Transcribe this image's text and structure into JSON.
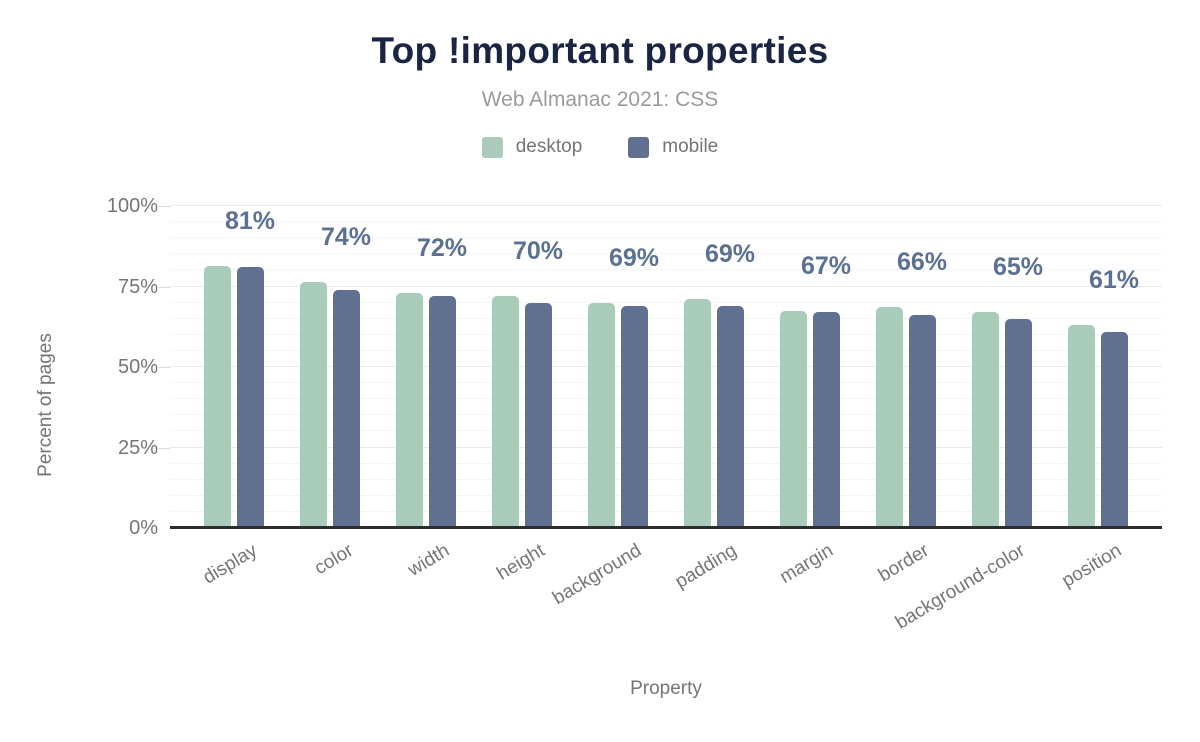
{
  "chart_data": {
    "type": "bar",
    "title": "Top !important properties",
    "subtitle": "Web Almanac 2021: CSS",
    "xlabel": "Property",
    "ylabel": "Percent of pages",
    "ylim": [
      0,
      100
    ],
    "ytick_values": [
      0,
      25,
      50,
      75,
      100
    ],
    "ytick_labels": [
      "0%",
      "25%",
      "50%",
      "75%",
      "100%"
    ],
    "categories": [
      "display",
      "color",
      "width",
      "height",
      "background",
      "padding",
      "margin",
      "border",
      "background-color",
      "position"
    ],
    "series": [
      {
        "name": "desktop",
        "color": "#a9cbb9",
        "values": [
          81.5,
          76.5,
          73,
          72,
          70,
          71,
          67.5,
          68.5,
          67,
          63
        ]
      },
      {
        "name": "mobile",
        "color": "#5f7090",
        "values": [
          81,
          74,
          72,
          70,
          69,
          69,
          67,
          66,
          65,
          61
        ]
      }
    ],
    "bar_labels": [
      "81%",
      "74%",
      "72%",
      "70%",
      "69%",
      "69%",
      "67%",
      "66%",
      "65%",
      "61%"
    ],
    "legend_position": "top",
    "grid": {
      "minor_step": 5,
      "major_step": 25,
      "orientation": "horizontal"
    }
  },
  "colors": {
    "title": "#1a2544",
    "subtitle": "#9a9a9a",
    "axis_text": "#757575",
    "bar_label": "#5b7193",
    "axis_line": "#2d2d2d",
    "gridline_minor": "#f5f5f5",
    "gridline_major": "#e9e9e9",
    "background": "#ffffff"
  }
}
